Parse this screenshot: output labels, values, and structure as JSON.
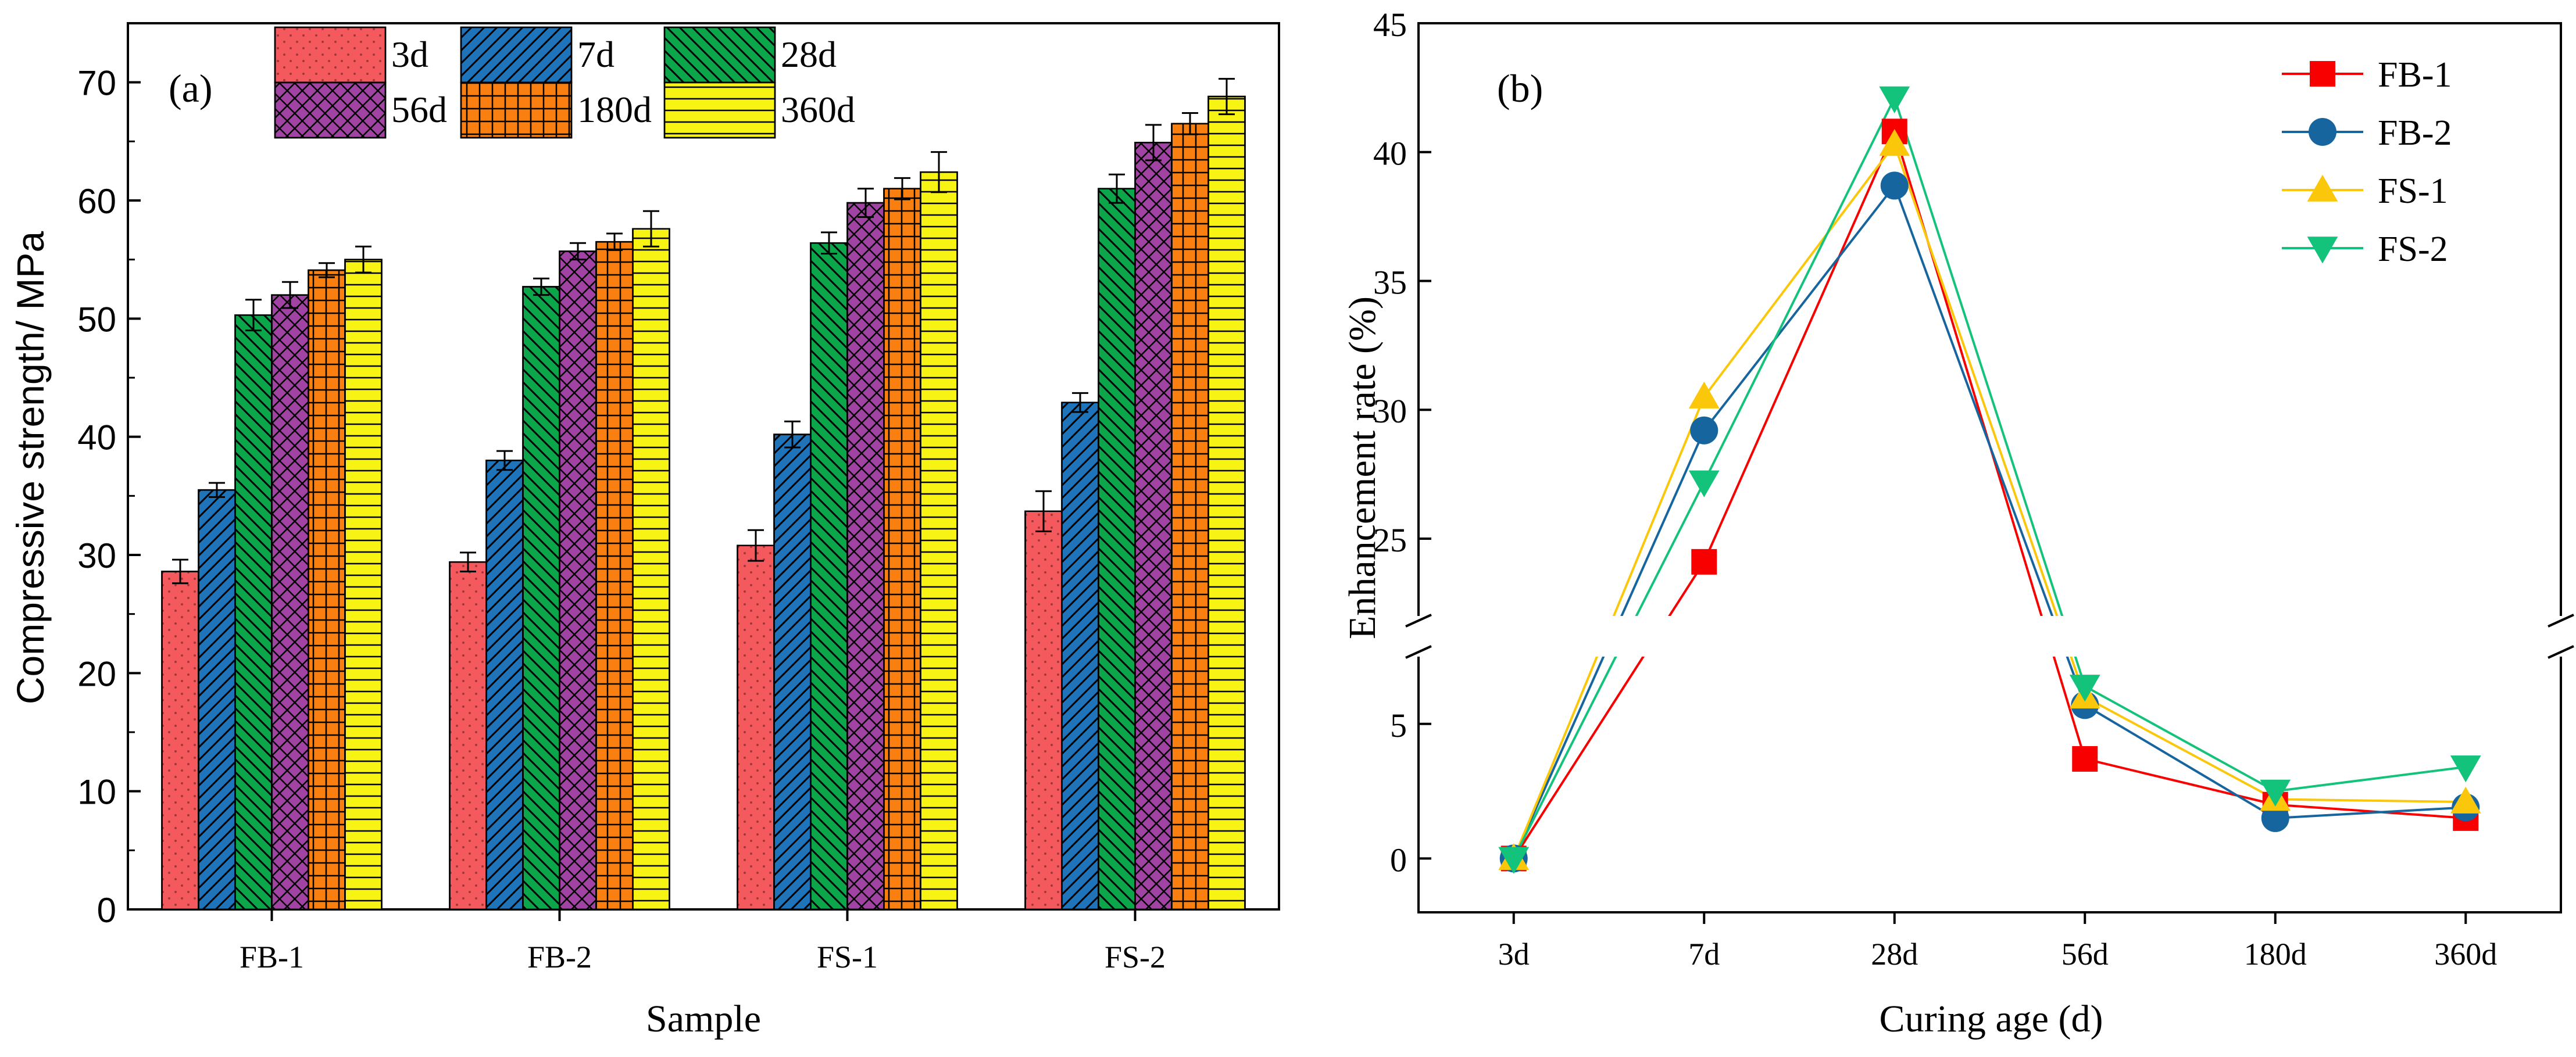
{
  "chart_data": [
    {
      "type": "bar",
      "panel_label": "(a)",
      "xlabel": "Sample",
      "ylabel": "Compressive strength/ MPa",
      "categories": [
        "FB-1",
        "FB-2",
        "FS-1",
        "FS-2"
      ],
      "ylim": [
        0,
        75
      ],
      "yticks": [
        0,
        10,
        20,
        30,
        40,
        50,
        60,
        70
      ],
      "legend_position": "top",
      "series": [
        {
          "name": "3d",
          "color": "#f4595e",
          "pattern": "dots",
          "values": [
            28.6,
            29.4,
            30.8,
            33.7
          ],
          "errors": [
            1.0,
            0.8,
            1.3,
            1.7
          ]
        },
        {
          "name": "7d",
          "color": "#1f73b9",
          "pattern": "diagonal",
          "values": [
            35.5,
            38.0,
            40.2,
            42.9
          ],
          "errors": [
            0.6,
            0.8,
            1.1,
            0.8
          ]
        },
        {
          "name": "28d",
          "color": "#0ca64a",
          "pattern": "backdiag",
          "values": [
            50.3,
            52.7,
            56.4,
            61.0
          ],
          "errors": [
            1.3,
            0.7,
            0.9,
            1.2
          ]
        },
        {
          "name": "56d",
          "color": "#a143a3",
          "pattern": "crosshatch",
          "values": [
            52.0,
            55.7,
            59.8,
            64.9
          ],
          "errors": [
            1.1,
            0.7,
            1.2,
            1.5
          ]
        },
        {
          "name": "180d",
          "color": "#f97f10",
          "pattern": "grid",
          "values": [
            54.1,
            56.5,
            61.0,
            66.5
          ],
          "errors": [
            0.6,
            0.7,
            0.9,
            0.9
          ]
        },
        {
          "name": "360d",
          "color": "#f7f314",
          "pattern": "horizontal",
          "values": [
            55.0,
            57.6,
            62.4,
            68.8
          ],
          "errors": [
            1.1,
            1.5,
            1.7,
            1.5
          ]
        }
      ]
    },
    {
      "type": "line",
      "panel_label": "(b)",
      "xlabel": "Curing age (d)",
      "ylabel": "Enhancement rate (%)",
      "categories": [
        "3d",
        "7d",
        "28d",
        "56d",
        "180d",
        "360d"
      ],
      "ylim_lower": [
        -2,
        7.5
      ],
      "ylim_upper": [
        22,
        45
      ],
      "yticks_lower": [
        0,
        5
      ],
      "yticks_upper": [
        25,
        30,
        35,
        40,
        45
      ],
      "axis_break": true,
      "legend_position": "top-right",
      "series": [
        {
          "name": "FB-1",
          "color": "#f90000",
          "marker": "square",
          "values": [
            0,
            24.1,
            40.8,
            3.7,
            2.0,
            1.5
          ]
        },
        {
          "name": "FB-2",
          "color": "#17659f",
          "marker": "circle",
          "values": [
            0,
            29.2,
            38.7,
            5.7,
            1.5,
            1.9
          ]
        },
        {
          "name": "FS-1",
          "color": "#fbc70a",
          "marker": "triangle-up",
          "values": [
            0,
            30.5,
            40.3,
            6.0,
            2.2,
            2.1
          ]
        },
        {
          "name": "FS-2",
          "color": "#14c37b",
          "marker": "triangle-down",
          "values": [
            0,
            27.2,
            42.1,
            6.4,
            2.5,
            3.4
          ]
        }
      ]
    }
  ]
}
